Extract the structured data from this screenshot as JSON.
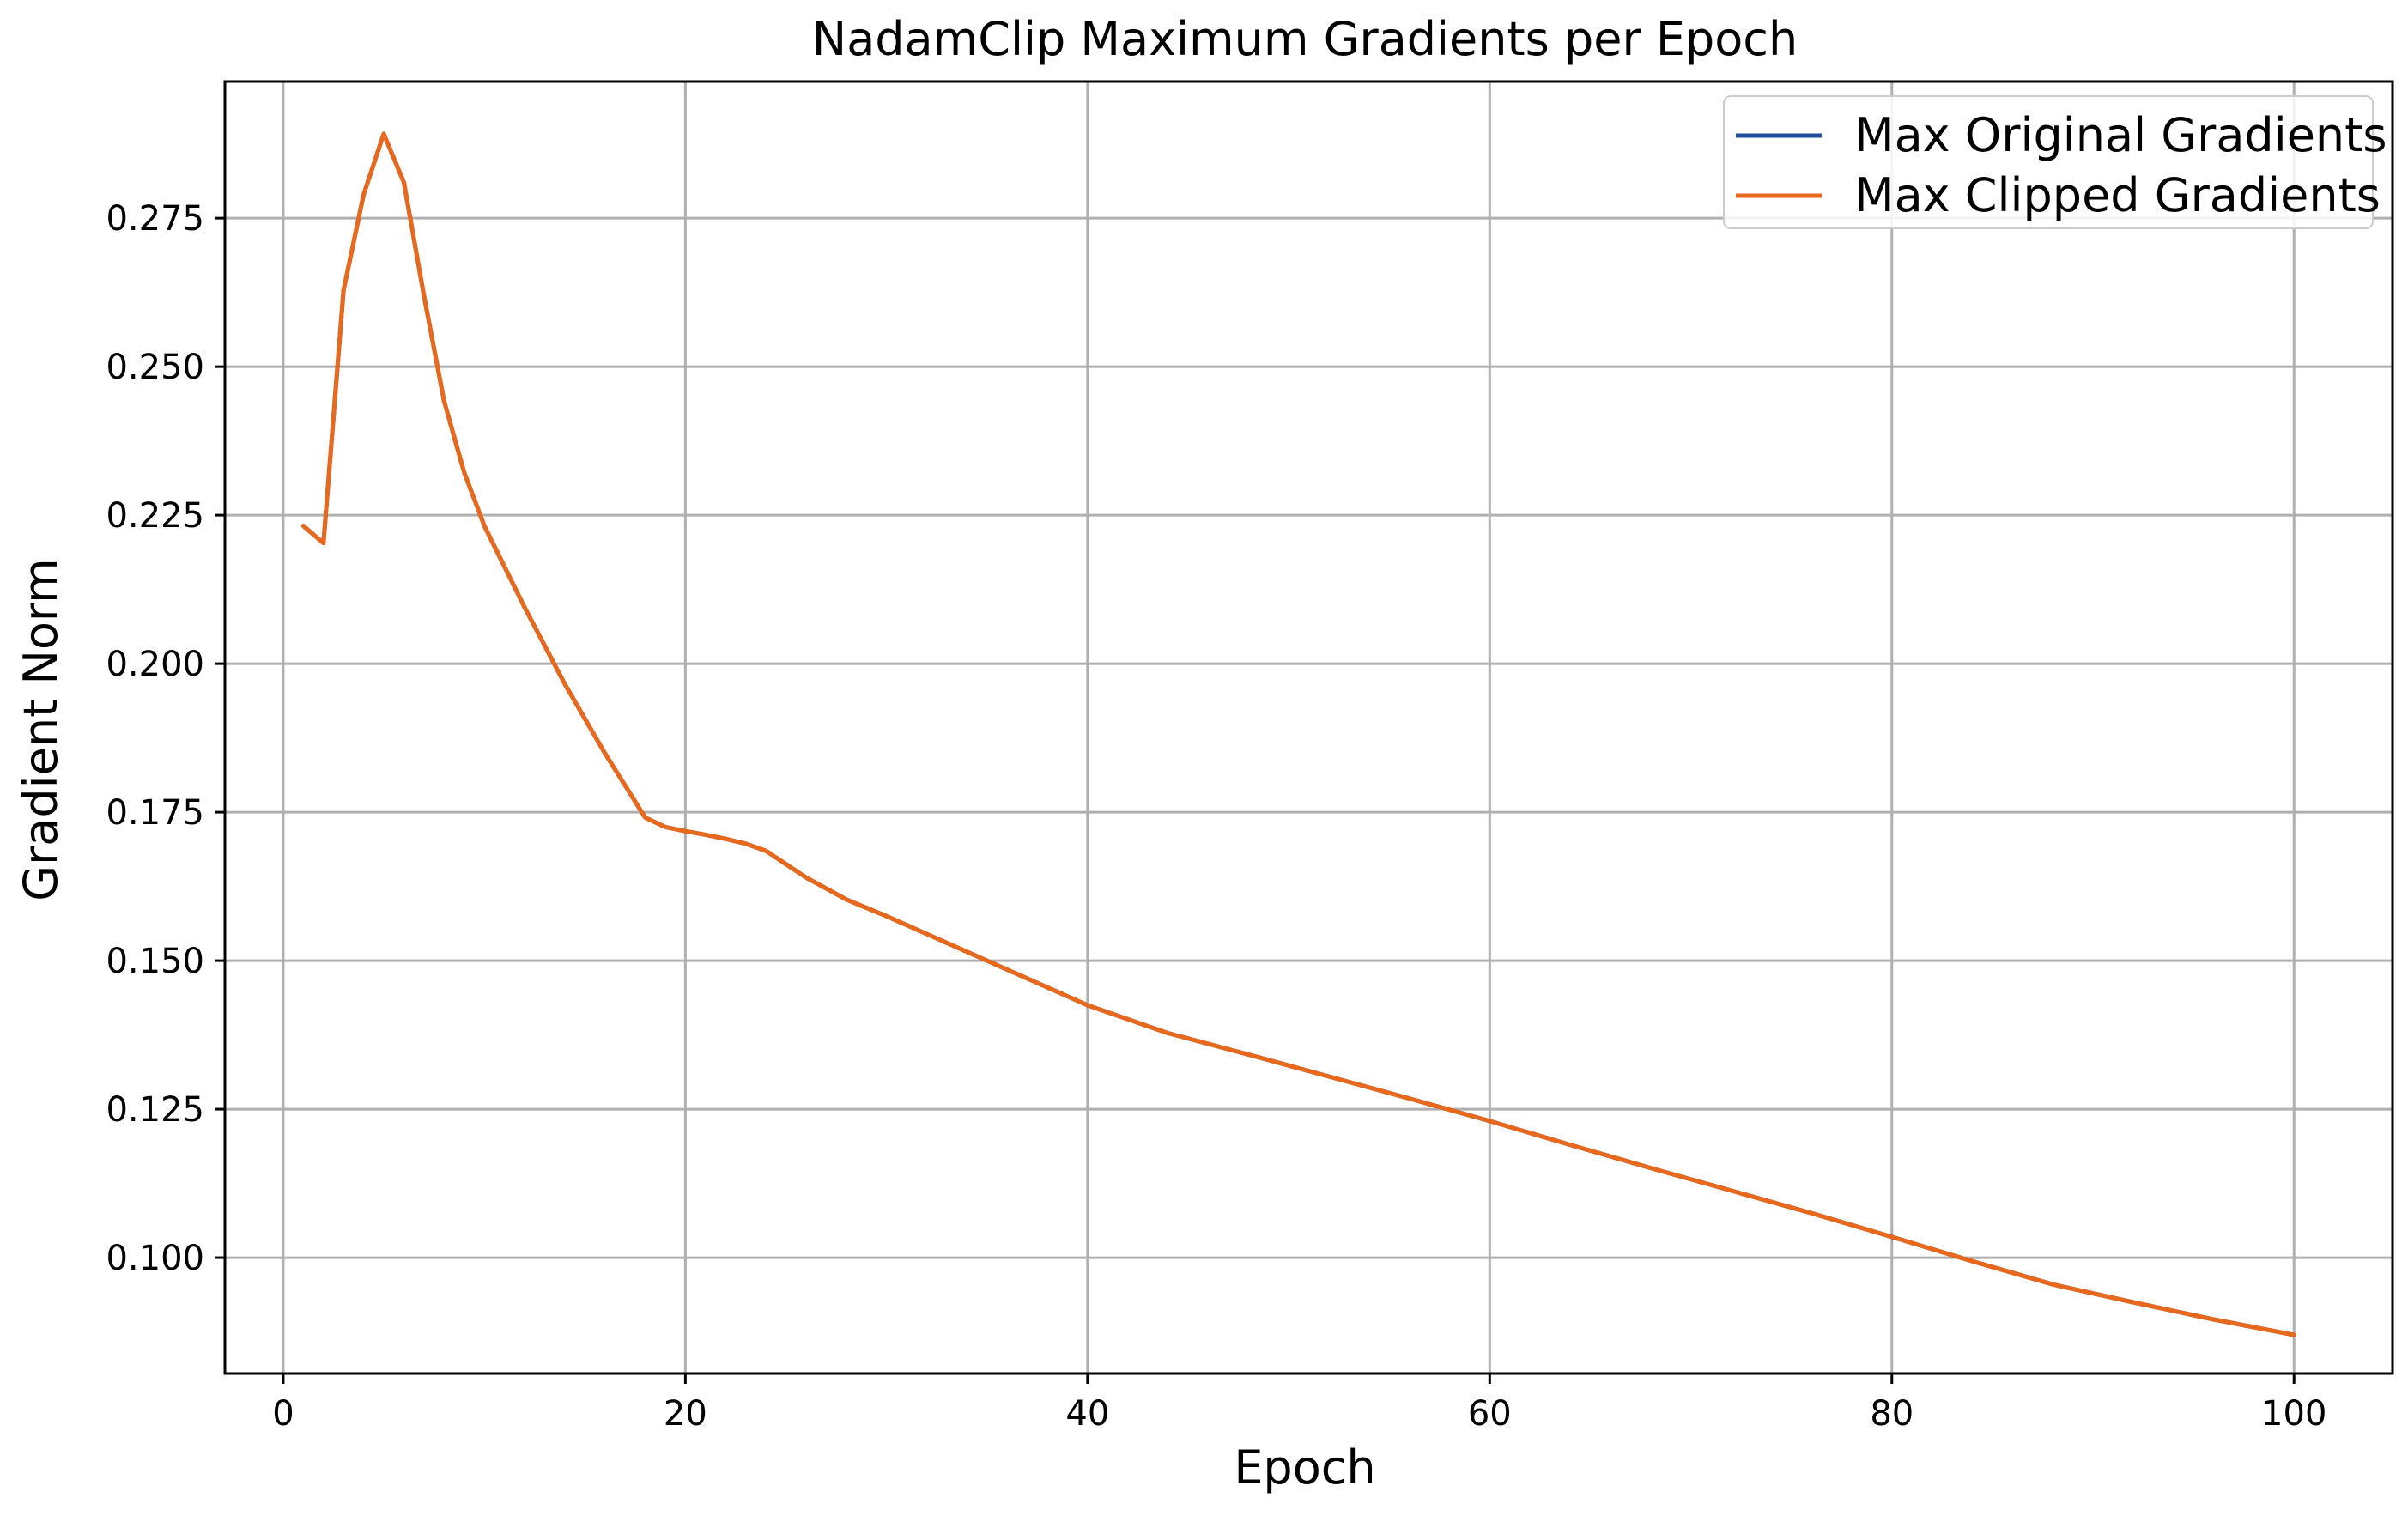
{
  "chart_data": {
    "type": "line",
    "title": "NadamClip Maximum Gradients per Epoch",
    "xlabel": "Epoch",
    "ylabel": "Gradient Norm",
    "xlim": [
      -2.9,
      104.9
    ],
    "ylim": [
      0.0805,
      0.298
    ],
    "xticks": [
      0,
      20,
      40,
      60,
      80,
      100
    ],
    "xtick_labels": [
      "0",
      "20",
      "40",
      "60",
      "80",
      "100"
    ],
    "yticks": [
      0.1,
      0.125,
      0.15,
      0.175,
      0.2,
      0.225,
      0.25,
      0.275
    ],
    "ytick_labels": [
      "0.100",
      "0.125",
      "0.150",
      "0.175",
      "0.200",
      "0.225",
      "0.250",
      "0.275"
    ],
    "grid": true,
    "legend_position": "top-right",
    "x": [
      1,
      2,
      3,
      4,
      5,
      6,
      7,
      8,
      9,
      10,
      12,
      14,
      16,
      18,
      19,
      20,
      21,
      22,
      23,
      24,
      26,
      28,
      30,
      32,
      34,
      36,
      38,
      40,
      44,
      48,
      52,
      56,
      60,
      64,
      68,
      72,
      76,
      80,
      84,
      88,
      92,
      96,
      100
    ],
    "series": [
      {
        "name": "Max Original Gradients",
        "color": "#1f4e9c",
        "values": [
          0.2232,
          0.2203,
          0.2629,
          0.279,
          0.2892,
          0.281,
          0.2619,
          0.2442,
          0.2322,
          0.2232,
          0.2095,
          0.1966,
          0.1849,
          0.1741,
          0.1725,
          0.1718,
          0.1712,
          0.1705,
          0.1697,
          0.1685,
          0.164,
          0.1603,
          0.1575,
          0.1545,
          0.1515,
          0.1485,
          0.1455,
          0.1425,
          0.1378,
          0.1342,
          0.1305,
          0.1268,
          0.123,
          0.119,
          0.1151,
          0.1113,
          0.1075,
          0.1035,
          0.0994,
          0.0955,
          0.0925,
          0.0896,
          0.087
        ]
      },
      {
        "name": "Max Clipped Gradients",
        "color": "#e8681c",
        "values": [
          0.2232,
          0.2203,
          0.2629,
          0.279,
          0.2892,
          0.281,
          0.2619,
          0.2442,
          0.2322,
          0.2232,
          0.2095,
          0.1966,
          0.1849,
          0.1741,
          0.1725,
          0.1718,
          0.1712,
          0.1705,
          0.1697,
          0.1685,
          0.164,
          0.1603,
          0.1575,
          0.1545,
          0.1515,
          0.1485,
          0.1455,
          0.1425,
          0.1378,
          0.1342,
          0.1305,
          0.1268,
          0.123,
          0.119,
          0.1151,
          0.1113,
          0.1075,
          0.1035,
          0.0994,
          0.0955,
          0.0925,
          0.0896,
          0.087
        ]
      }
    ]
  }
}
